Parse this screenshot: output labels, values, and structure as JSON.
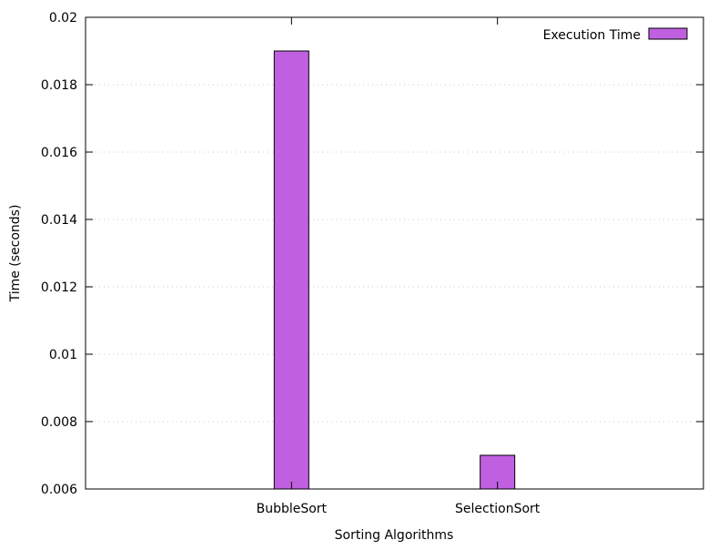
{
  "chart_data": {
    "type": "bar",
    "categories": [
      "BubbleSort",
      "SelectionSort"
    ],
    "series": [
      {
        "name": "Execution Time",
        "values": [
          0.019,
          0.007
        ],
        "color": "#c060e0"
      }
    ],
    "xlabel": "Sorting Algorithms",
    "ylabel": "Time (seconds)",
    "ylim": [
      0.006,
      0.02
    ],
    "yticks": [
      "0.006",
      "0.008",
      "0.01",
      "0.012",
      "0.014",
      "0.016",
      "0.018",
      "0.02"
    ],
    "ytick_values": [
      0.006,
      0.008,
      0.01,
      0.012,
      0.014,
      0.016,
      0.018,
      0.02
    ],
    "grid": "horizontal-dotted",
    "legend": "top-right"
  }
}
